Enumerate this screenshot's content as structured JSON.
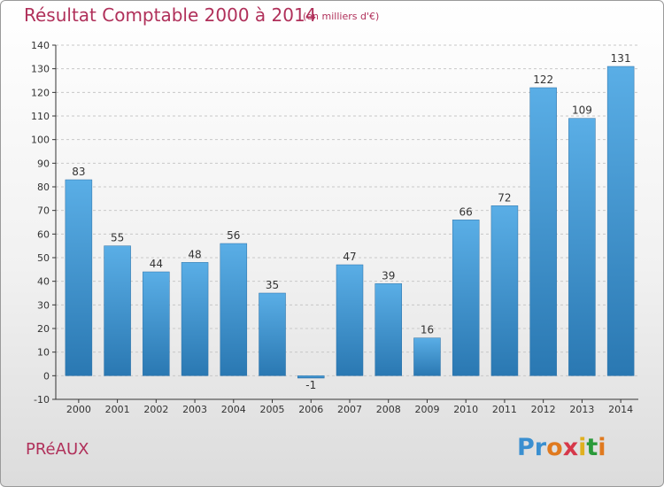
{
  "chart_data": {
    "type": "bar",
    "title": "Résultat Comptable 2000 à 2014",
    "subtitle": "(en milliers d'€)",
    "categories": [
      "2000",
      "2001",
      "2002",
      "2003",
      "2004",
      "2005",
      "2006",
      "2007",
      "2008",
      "2009",
      "2010",
      "2011",
      "2012",
      "2013",
      "2014"
    ],
    "values": [
      83,
      55,
      44,
      48,
      56,
      35,
      -1,
      47,
      39,
      16,
      66,
      72,
      122,
      109,
      131
    ],
    "ylim": [
      -10,
      140
    ],
    "yticks": [
      -10,
      0,
      10,
      20,
      30,
      40,
      50,
      60,
      70,
      80,
      90,
      100,
      110,
      120,
      130,
      140
    ],
    "xlabel": "",
    "ylabel": "",
    "grid": true,
    "colors": {
      "bar_light": "#5aaee6",
      "bar_dark": "#2a78b2",
      "grid": "#c8c8c8",
      "axis": "#333333"
    }
  },
  "footer": {
    "commune": "PRéAUX",
    "logo": [
      "P",
      "r",
      "o",
      "x",
      "i",
      "t",
      "i"
    ],
    "logo_colors": [
      "#3a8fd0",
      "#3a8fd0",
      "#e07a1f",
      "#d6384a",
      "#e0b01f",
      "#2a9a3a",
      "#e07a1f"
    ]
  }
}
